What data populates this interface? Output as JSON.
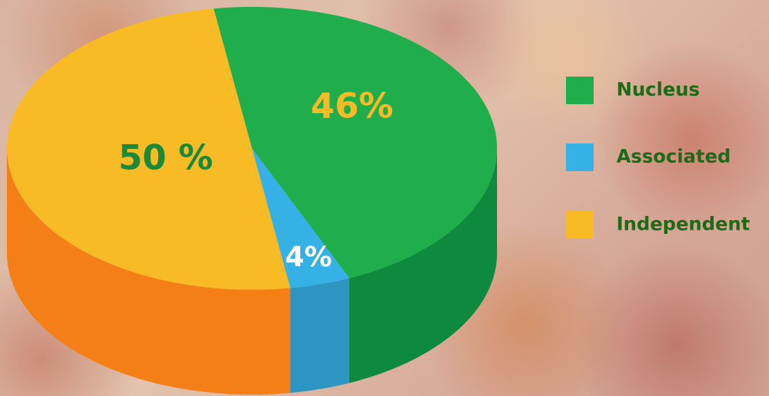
{
  "chart_data": {
    "type": "pie3d",
    "categories": [
      "Nucleus",
      "Associated",
      "Independent"
    ],
    "values": [
      46,
      4,
      50
    ],
    "value_labels": [
      "46%",
      "4%",
      "50 %"
    ],
    "colors": [
      "#20ad4b",
      "#36b1e6",
      "#f8bb26"
    ],
    "side_colors": [
      "#0d8a3d",
      "#2c95c4",
      "#f47f17"
    ],
    "legend": "right"
  }
}
